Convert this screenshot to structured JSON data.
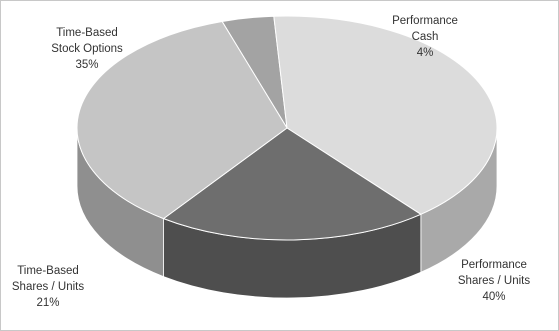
{
  "chart_data": {
    "type": "pie",
    "style": "3d",
    "title": "",
    "slices": [
      {
        "label_lines": [
          "Performance",
          "Cash"
        ],
        "percent_text": "4%",
        "value": 4,
        "top_color": "#a3a3a3",
        "side_color": "#7e7e7e"
      },
      {
        "label_lines": [
          "Performance",
          "Shares  / Units"
        ],
        "percent_text": "40%",
        "value": 40,
        "top_color": "#dcdcdc",
        "side_color": "#a9a9a9"
      },
      {
        "label_lines": [
          "Time-Based",
          "Shares / Units"
        ],
        "percent_text": "21%",
        "value": 21,
        "top_color": "#6e6e6e",
        "side_color": "#4e4e4e"
      },
      {
        "label_lines": [
          "Time-Based",
          "Stock Options"
        ],
        "percent_text": "35%",
        "value": 35,
        "top_color": "#c5c5c5",
        "side_color": "#8f8f8f"
      }
    ]
  }
}
